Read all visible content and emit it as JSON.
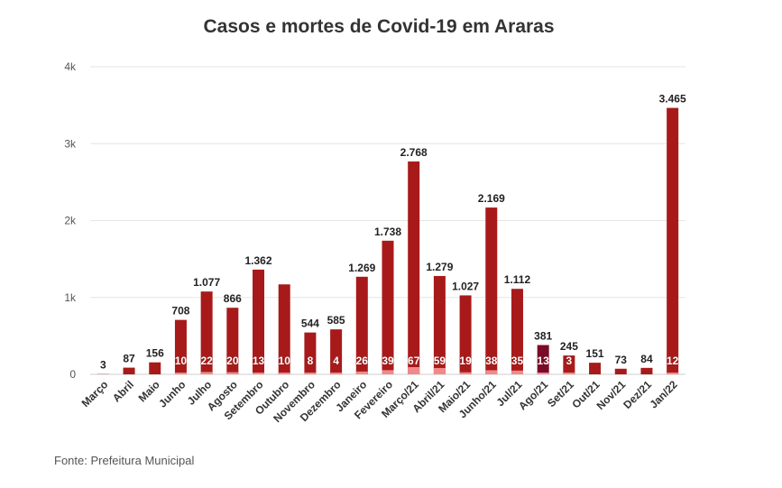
{
  "chart_data": {
    "type": "bar",
    "title": "Casos e mortes de Covid-19 em Araras",
    "source": "Fonte: Prefeitura Municipal",
    "xlabel": "",
    "ylabel": "",
    "ylim": [
      0,
      4000
    ],
    "y_ticks": [
      0,
      1000,
      2000,
      3000,
      4000
    ],
    "y_tick_labels": [
      "0",
      "1k",
      "2k",
      "3k",
      "4k"
    ],
    "grid": true,
    "categories": [
      "Março",
      "Abril",
      "Maio",
      "Junho",
      "Julho",
      "Agosto",
      "Setembro",
      "Outubro",
      "Novembro",
      "Dezembro",
      "Janeiro",
      "Fevereiro",
      "Março/21",
      "Abril/21",
      "Maio/21",
      "Junho/21",
      "Jul/21",
      "Ago/21",
      "Set/21",
      "Out/21",
      "Nov/21",
      "Dez/21",
      "Jan/22"
    ],
    "series": [
      {
        "values": [
          3,
          87,
          156,
          708,
          1077,
          866,
          1362,
          1170,
          544,
          585,
          1269,
          1738,
          2768,
          1279,
          1027,
          2169,
          1112,
          381,
          245,
          151,
          73,
          84,
          3465
        ],
        "labels": [
          "3",
          "87",
          "156",
          "708",
          "1.077",
          "866",
          "1.362",
          "",
          "544",
          "585",
          "1.269",
          "1.738",
          "2.768",
          "1.279",
          "1.027",
          "2.169",
          "1.112",
          "381",
          "245",
          "151",
          "73",
          "84",
          "3.465"
        ]
      },
      {
        "values": [
          0,
          0,
          0,
          10,
          22,
          20,
          13,
          10,
          8,
          4,
          26,
          39,
          67,
          59,
          19,
          38,
          35,
          13,
          3,
          0,
          0,
          0,
          12
        ],
        "labels": [
          "",
          "",
          "",
          "10",
          "22",
          "20",
          "13",
          "10",
          "8",
          "4",
          "26",
          "39",
          "67",
          "59",
          "19",
          "38",
          "35",
          "13",
          "3",
          "",
          "",
          "",
          "12"
        ]
      }
    ],
    "colors": {
      "cases": "#a81a1a",
      "cases_highlight": "#7a0a2a",
      "deaths_base": "#e35a5a",
      "deaths_light": "#f08a8a",
      "grid": "#e6e6e6"
    }
  }
}
